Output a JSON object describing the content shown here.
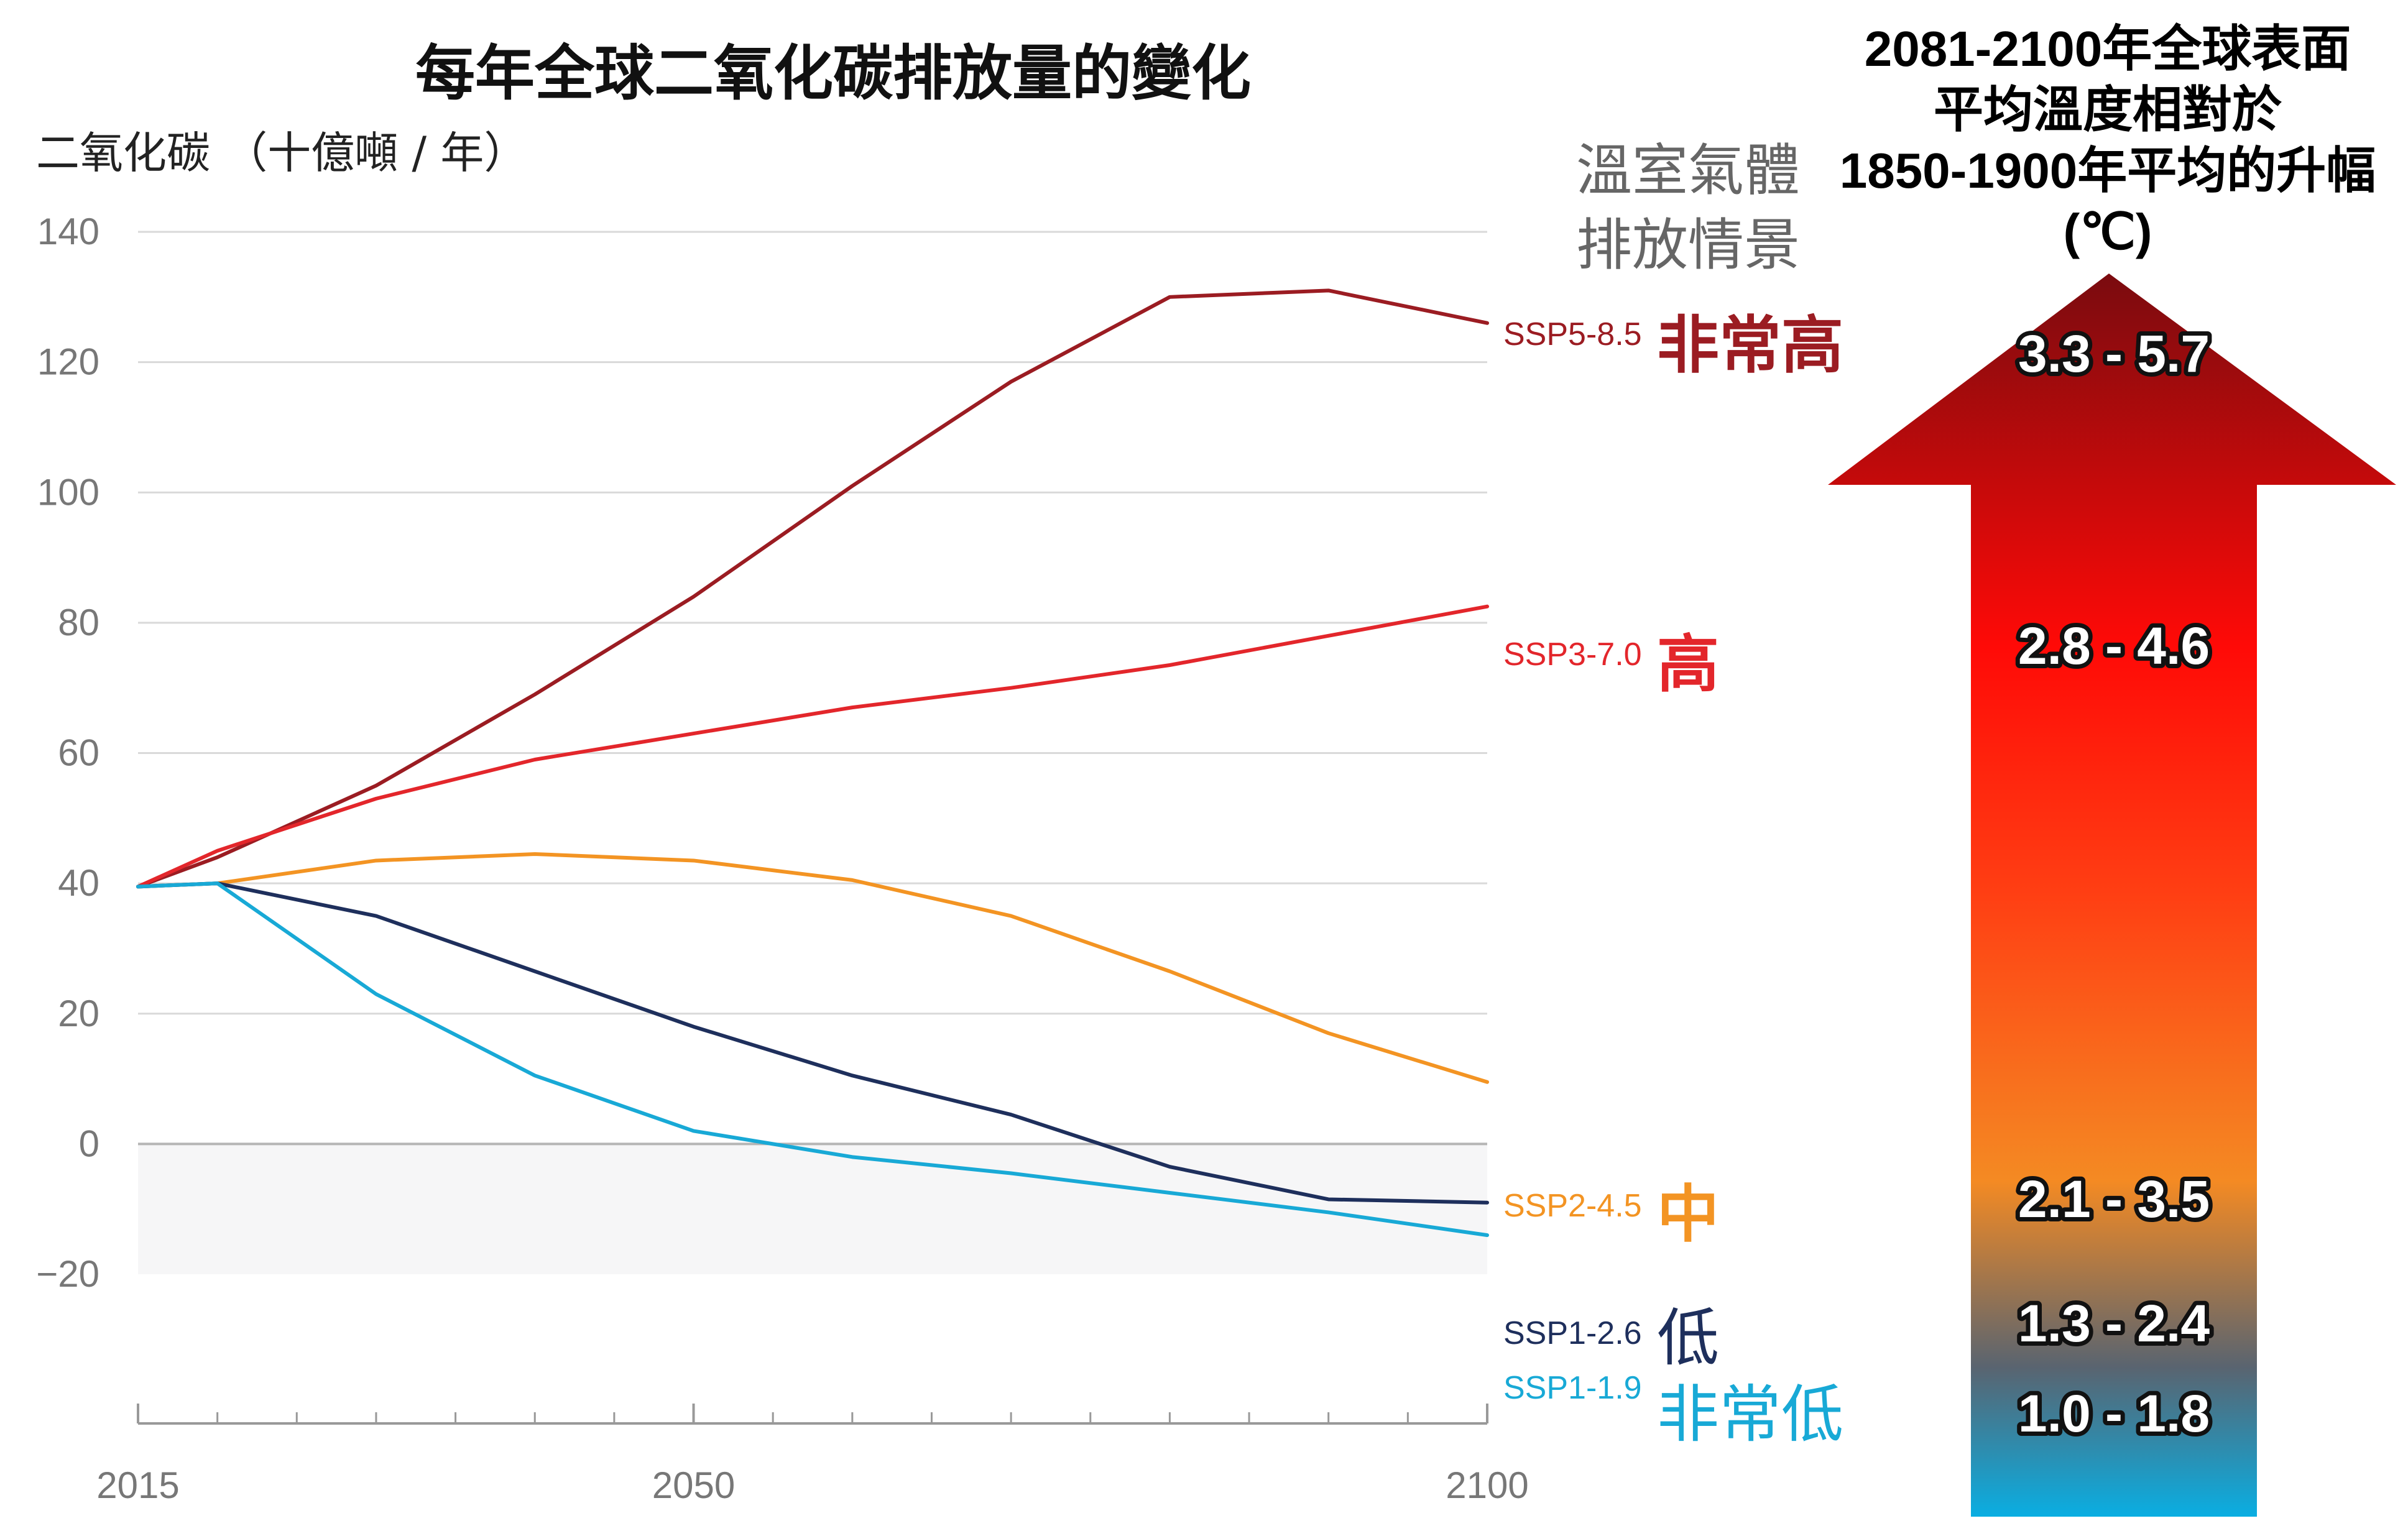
{
  "headers": {
    "title": "每年全球二氧化碳排放量的變化",
    "unit": "二氧化碳 （十億噸 / 年）",
    "scenario_heading_line1": "溫室氣體",
    "scenario_heading_line2": "排放情景",
    "temp_heading_line1": "2081-2100年全球表面",
    "temp_heading_line2": "平均溫度相對於",
    "temp_heading_line3": "1850-1900年平均的升幅",
    "temp_heading_line4": "(℃)"
  },
  "chart_data": {
    "type": "line",
    "title": "每年全球二氧化碳排放量的變化",
    "ylabel": "二氧化碳 （十億噸 / 年）",
    "xlabel": "",
    "xlim": [
      2015,
      2100
    ],
    "ylim": [
      -20,
      140
    ],
    "x_ticks": [
      2015,
      2050,
      2100
    ],
    "y_ticks": [
      -20,
      0,
      20,
      40,
      60,
      80,
      100,
      120,
      140
    ],
    "y_tick_labels": [
      "−20",
      "0",
      "20",
      "40",
      "60",
      "80",
      "100",
      "120",
      "140"
    ],
    "grid": true,
    "negative_region_shaded": true,
    "x": [
      2015,
      2020,
      2030,
      2040,
      2050,
      2060,
      2070,
      2080,
      2090,
      2100
    ],
    "series": [
      {
        "name": "SSP5-8.5",
        "level": "非常高",
        "color": "#9b1c22",
        "values": [
          39.5,
          44,
          55,
          69,
          84,
          101,
          117,
          130,
          131,
          126
        ]
      },
      {
        "name": "SSP3-7.0",
        "level": "高",
        "color": "#e3262b",
        "values": [
          39.5,
          45,
          53,
          59,
          63,
          67,
          70,
          73.5,
          78,
          82.5
        ]
      },
      {
        "name": "SSP2-4.5",
        "level": "中",
        "color": "#f39423",
        "values": [
          39.5,
          40,
          43.5,
          44.5,
          43.5,
          40.5,
          35,
          26.5,
          17,
          9.5
        ]
      },
      {
        "name": "SSP1-2.6",
        "level": "低",
        "color": "#1e2f5c",
        "values": [
          39.5,
          40,
          35,
          26.5,
          18,
          10.5,
          4.5,
          -3.5,
          -8.5,
          -9
        ]
      },
      {
        "name": "SSP1-1.9",
        "level": "非常低",
        "color": "#18a9d6",
        "values": [
          39.5,
          40,
          23,
          10.5,
          2,
          -2,
          -4.5,
          -7.5,
          -10.5,
          -14
        ]
      }
    ]
  },
  "temperature_ranges": [
    {
      "label": "3.3 - 5.7",
      "scenario": "SSP5-8.5"
    },
    {
      "label": "2.8 - 4.6",
      "scenario": "SSP3-7.0"
    },
    {
      "label": "2.1 - 3.5",
      "scenario": "SSP2-4.5"
    },
    {
      "label": "1.3 - 2.4",
      "scenario": "SSP1-2.6"
    },
    {
      "label": "1.0 - 1.8",
      "scenario": "SSP1-1.9"
    }
  ],
  "arrow_colors": [
    "#7a0b0f",
    "#ff0a07",
    "#ff3f13",
    "#f48a23",
    "#596470",
    "#0aaee2"
  ]
}
